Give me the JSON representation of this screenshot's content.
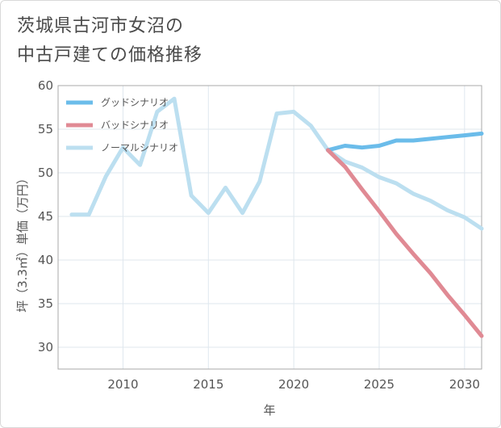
{
  "title_lines": [
    "茨城県古河市女沼の",
    "中古戸建ての価格推移"
  ],
  "chart_data": {
    "type": "line",
    "title": "茨城県古河市女沼の中古戸建ての価格推移",
    "xlabel": "年",
    "ylabel": "坪（3.3㎡）単価（万円）",
    "xlim": [
      2006.2,
      2031
    ],
    "ylim": [
      27.5,
      60
    ],
    "xticks": [
      2010,
      2015,
      2020,
      2025,
      2030
    ],
    "yticks": [
      30,
      35,
      40,
      45,
      50,
      55,
      60
    ],
    "grid": true,
    "legend_position": "top-left",
    "series": [
      {
        "name": "グッドシナリオ",
        "color": "#6bbcea",
        "x": [
          2022,
          2023,
          2024,
          2025,
          2026,
          2027,
          2028,
          2029,
          2030,
          2031
        ],
        "values": [
          52.6,
          53.1,
          52.9,
          53.1,
          53.7,
          53.7,
          53.9,
          54.1,
          54.3,
          54.5
        ]
      },
      {
        "name": "バッドシナリオ",
        "color": "#e08a94",
        "x": [
          2022,
          2023,
          2024,
          2025,
          2026,
          2027,
          2028,
          2029,
          2030,
          2031
        ],
        "values": [
          52.6,
          50.7,
          48.1,
          45.6,
          43.0,
          40.7,
          38.5,
          36.0,
          33.7,
          31.3
        ]
      },
      {
        "name": "ノーマルシナリオ",
        "color": "#bcdff0",
        "x": [
          2007,
          2008,
          2009,
          2010,
          2011,
          2012,
          2013,
          2014,
          2015,
          2016,
          2017,
          2018,
          2019,
          2020,
          2021,
          2022,
          2023,
          2024,
          2025,
          2026,
          2027,
          2028,
          2029,
          2030,
          2031
        ],
        "values": [
          45.2,
          45.2,
          49.6,
          52.9,
          50.9,
          57.0,
          58.5,
          47.4,
          45.4,
          48.3,
          45.4,
          49.0,
          56.8,
          57.0,
          55.4,
          52.6,
          51.3,
          50.6,
          49.5,
          48.8,
          47.6,
          46.8,
          45.7,
          44.9,
          43.6
        ]
      }
    ]
  }
}
